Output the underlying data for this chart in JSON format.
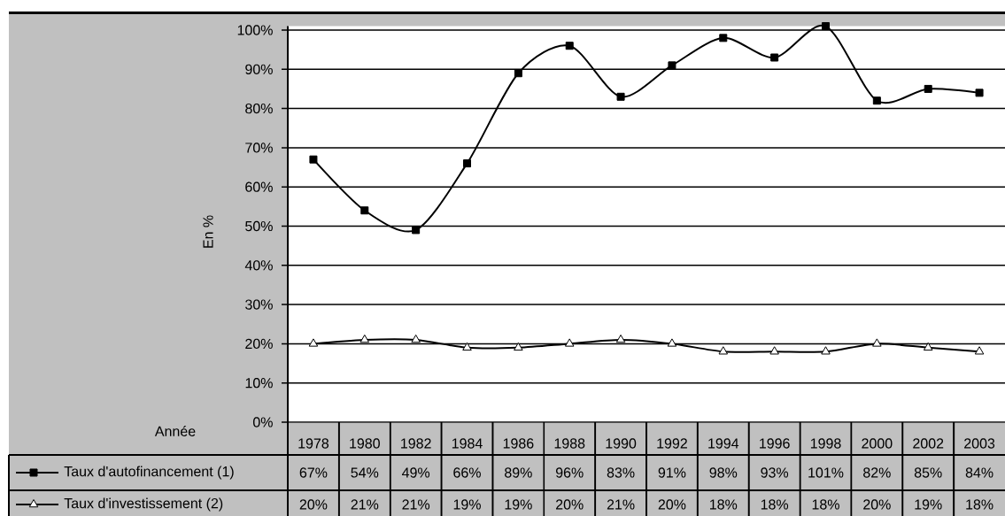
{
  "chart_data": {
    "type": "line",
    "xlabel": "Année",
    "ylabel": "En %",
    "categories": [
      "1978",
      "1980",
      "1982",
      "1984",
      "1986",
      "1988",
      "1990",
      "1992",
      "1994",
      "1996",
      "1998",
      "2000",
      "2002",
      "2003"
    ],
    "series": [
      {
        "name": "Taux d'autofinancement (1)",
        "color": "#000000",
        "marker": "square",
        "values": [
          67,
          54,
          49,
          66,
          89,
          96,
          83,
          91,
          98,
          93,
          101,
          82,
          85,
          84
        ],
        "value_labels": [
          "67%",
          "54%",
          "49%",
          "66%",
          "89%",
          "96%",
          "83%",
          "91%",
          "98%",
          "93%",
          "101%",
          "82%",
          "85%",
          "84%"
        ]
      },
      {
        "name": "Taux d'investissement (2)",
        "color": "#000000",
        "marker": "triangle",
        "values": [
          20,
          21,
          21,
          19,
          19,
          20,
          21,
          20,
          18,
          18,
          18,
          20,
          19,
          18
        ],
        "value_labels": [
          "20%",
          "21%",
          "21%",
          "19%",
          "19%",
          "20%",
          "21%",
          "20%",
          "18%",
          "18%",
          "18%",
          "20%",
          "19%",
          "18%"
        ]
      }
    ],
    "ylim": [
      0,
      101
    ],
    "yticks": [
      {
        "value": 0,
        "label": "0%"
      },
      {
        "value": 10,
        "label": "10%"
      },
      {
        "value": 20,
        "label": "20%"
      },
      {
        "value": 30,
        "label": "30%"
      },
      {
        "value": 40,
        "label": "40%"
      },
      {
        "value": 50,
        "label": "50%"
      },
      {
        "value": 60,
        "label": "60%"
      },
      {
        "value": 70,
        "label": "70%"
      },
      {
        "value": 80,
        "label": "80%"
      },
      {
        "value": 90,
        "label": "90%"
      },
      {
        "value": 100,
        "label": "100%"
      }
    ],
    "grid": "y",
    "legend": "bottom"
  }
}
